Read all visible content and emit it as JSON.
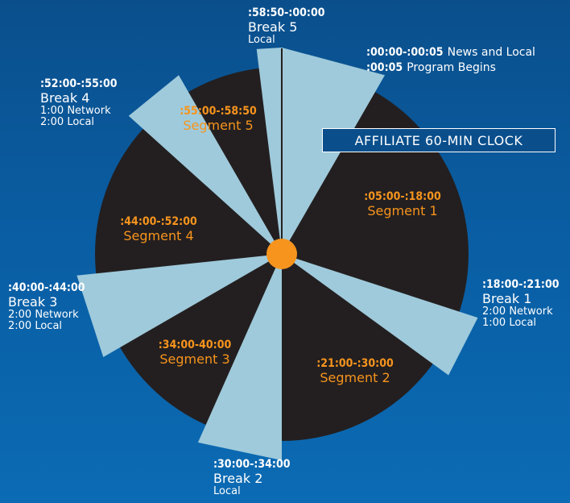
{
  "title": "AFFILIATE 60-MIN CLOCK",
  "colors": {
    "background_top": "#0a4f8c",
    "background_bottom": "#0b6bb4",
    "clock_face": "#231f20",
    "break_wedge": "#9fcadb",
    "segment_text": "#f7941d",
    "center_dot": "#f7941d"
  },
  "breaks": [
    {
      "time": ":00:00-:00:05",
      "name": "News and Local",
      "detail": "Program Begins",
      "detail_time": ":00:05"
    },
    {
      "time": ":18:00-:21:00",
      "name": "Break 1",
      "line1": "2:00 Network",
      "line2": "1:00 Local"
    },
    {
      "time": ":30:00-:34:00",
      "name": "Break 2",
      "line1": "Local"
    },
    {
      "time": ":40:00-:44:00",
      "name": "Break 3",
      "line1": "2:00 Network",
      "line2": "2:00 Local"
    },
    {
      "time": ":52:00-:55:00",
      "name": "Break 4",
      "line1": "1:00 Network",
      "line2": "2:00 Local"
    },
    {
      "time": ":58:50-:00:00",
      "name": "Break 5",
      "line1": "Local"
    }
  ],
  "segments": [
    {
      "time": ":05:00-:18:00",
      "name": "Segment 1"
    },
    {
      "time": ":21:00-:30:00",
      "name": "Segment 2"
    },
    {
      "time": ":34:00-40:00",
      "name": "Segment 3"
    },
    {
      "time": ":44:00-:52:00",
      "name": "Segment 4"
    },
    {
      "time": ":55:00-:58:50",
      "name": "Segment 5"
    }
  ],
  "wedges": [
    {
      "start_min": 0,
      "end_min": 5
    },
    {
      "start_min": 18,
      "end_min": 21
    },
    {
      "start_min": 30,
      "end_min": 34
    },
    {
      "start_min": 40,
      "end_min": 44
    },
    {
      "start_min": 52,
      "end_min": 55
    },
    {
      "start_min": 58.83,
      "end_min": 60
    }
  ]
}
